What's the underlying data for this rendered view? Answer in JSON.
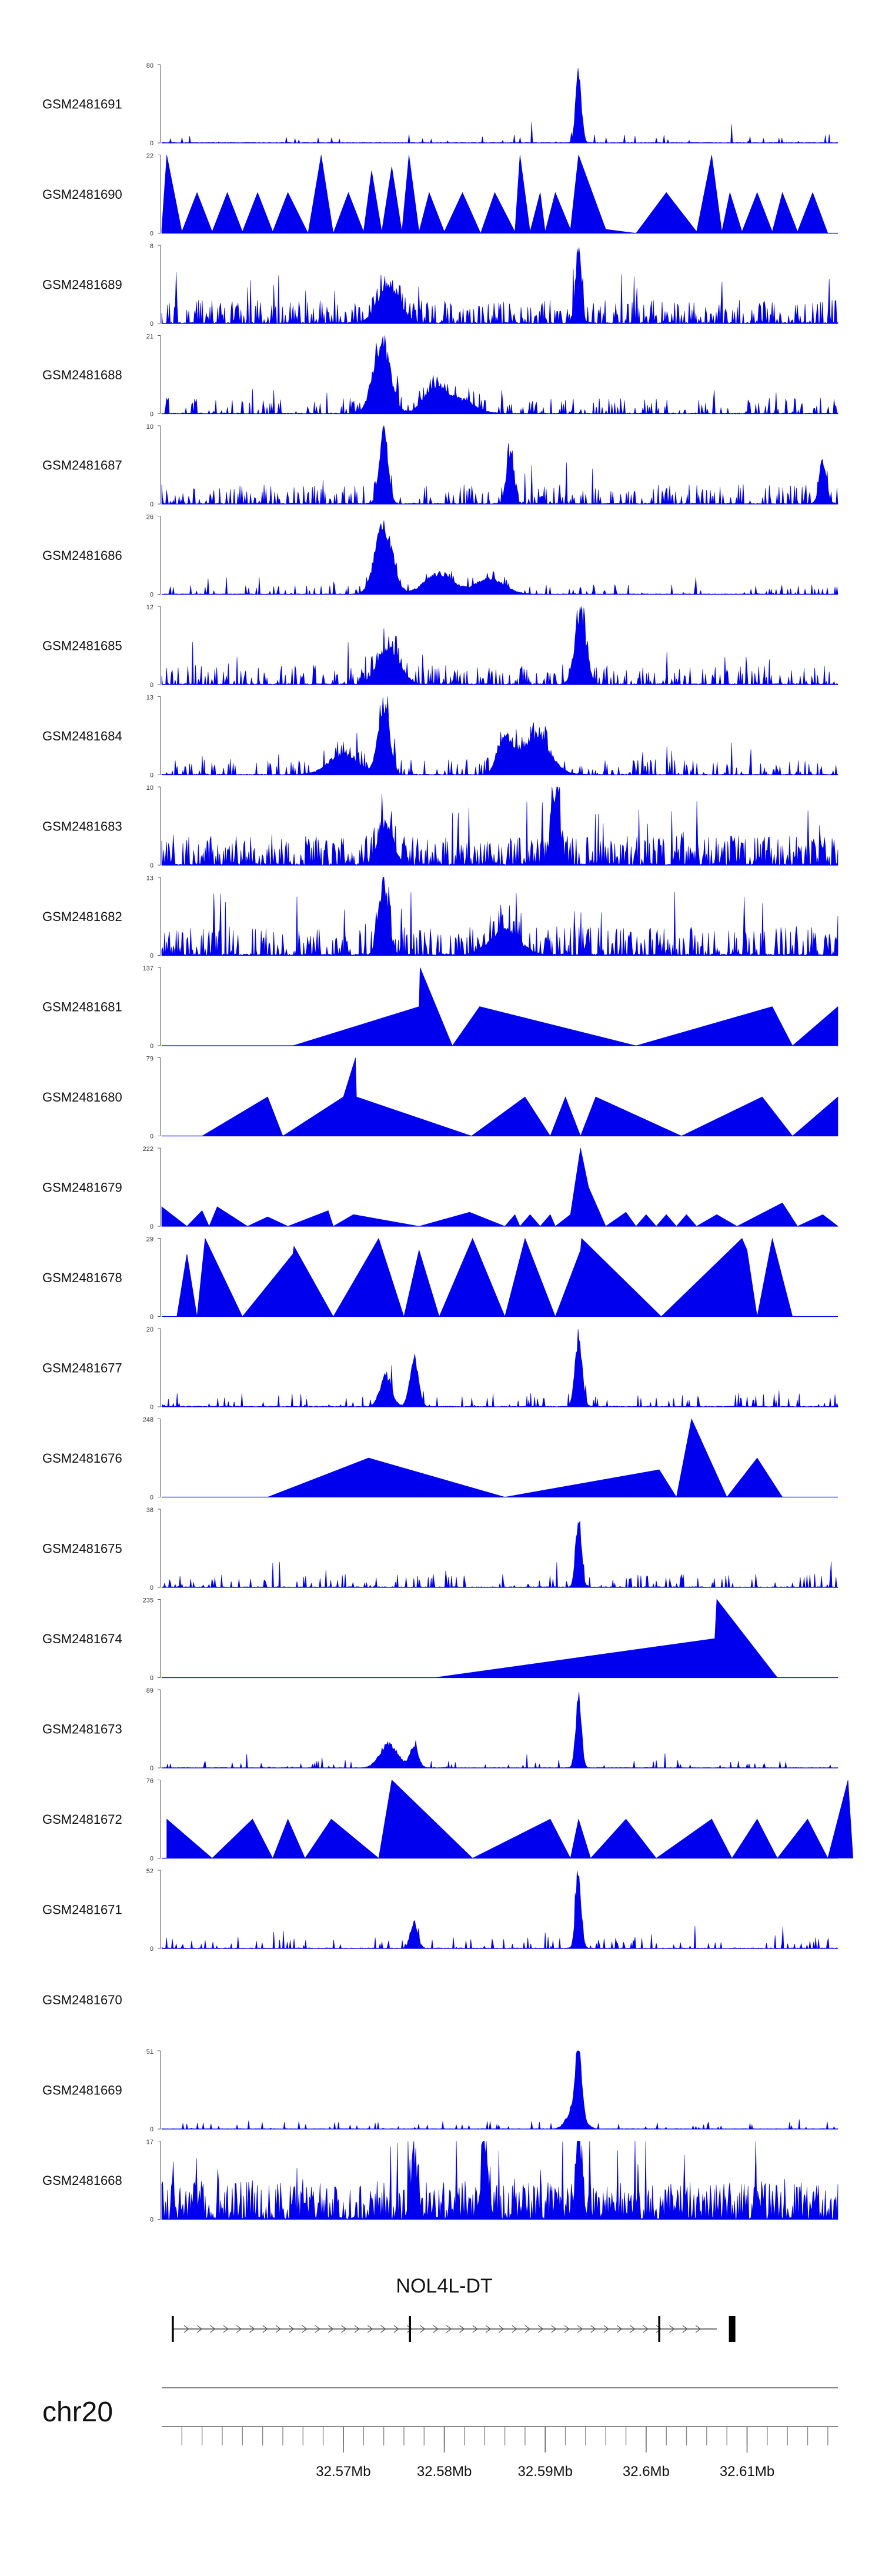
{
  "chart_data": {
    "type": "area",
    "title": "",
    "track_color": "#0000ee",
    "axis_color": "#555555",
    "x_range": [
      32.552,
      32.619
    ],
    "x_unit": "Mb",
    "tracks": [
      {
        "id": "GSM2481691",
        "ymax": 80,
        "style": "noise",
        "seed": 11,
        "density": 0.06,
        "base": 0.05,
        "peaks": [
          [
            32.5933,
            1.0,
            0.0004
          ]
        ]
      },
      {
        "id": "GSM2481690",
        "ymax": 22,
        "style": "tri",
        "points": [
          [
            32.552,
            0.05
          ],
          [
            32.5525,
            1.0
          ],
          [
            32.554,
            0.02
          ],
          [
            32.5555,
            0.52
          ],
          [
            32.557,
            0.02
          ],
          [
            32.5585,
            0.52
          ],
          [
            32.56,
            0.02
          ],
          [
            32.5615,
            0.52
          ],
          [
            32.563,
            0.02
          ],
          [
            32.5645,
            0.52
          ],
          [
            32.5665,
            0.0
          ],
          [
            32.5678,
            1.0
          ],
          [
            32.569,
            0.0
          ],
          [
            32.5705,
            0.52
          ],
          [
            32.572,
            0.02
          ],
          [
            32.5728,
            0.8
          ],
          [
            32.5738,
            0.02
          ],
          [
            32.5748,
            0.85
          ],
          [
            32.5758,
            0.02
          ],
          [
            32.5765,
            1.0
          ],
          [
            32.5775,
            0.02
          ],
          [
            32.5785,
            0.52
          ],
          [
            32.58,
            0.02
          ],
          [
            32.5818,
            0.52
          ],
          [
            32.5836,
            0.0
          ],
          [
            32.585,
            0.52
          ],
          [
            32.587,
            0.02
          ],
          [
            32.5875,
            1.0
          ],
          [
            32.5885,
            0.02
          ],
          [
            32.5895,
            0.52
          ],
          [
            32.59,
            0.02
          ],
          [
            32.591,
            0.52
          ],
          [
            32.5925,
            0.05
          ],
          [
            32.5933,
            1.0
          ],
          [
            32.596,
            0.05
          ],
          [
            32.599,
            0.0
          ],
          [
            32.602,
            0.52
          ],
          [
            32.605,
            0.02
          ],
          [
            32.6065,
            1.0
          ],
          [
            32.6075,
            0.02
          ],
          [
            32.6083,
            0.52
          ],
          [
            32.6095,
            0.02
          ],
          [
            32.611,
            0.52
          ],
          [
            32.6125,
            0.02
          ],
          [
            32.6135,
            0.52
          ],
          [
            32.615,
            0.02
          ],
          [
            32.6165,
            0.52
          ],
          [
            32.618,
            0.0
          ]
        ]
      },
      {
        "id": "GSM2481689",
        "ymax": 8,
        "style": "noise",
        "seed": 23,
        "density": 0.45,
        "base": 0.12,
        "peaks": [
          [
            32.5933,
            1.0,
            0.0004
          ],
          [
            32.5745,
            0.55,
            0.0015
          ]
        ]
      },
      {
        "id": "GSM2481688",
        "ymax": 21,
        "style": "noise",
        "seed": 37,
        "density": 0.25,
        "base": 0.08,
        "peaks": [
          [
            32.5738,
            1.0,
            0.0012
          ],
          [
            32.579,
            0.35,
            0.0015
          ],
          [
            32.5815,
            0.2,
            0.002
          ]
        ]
      },
      {
        "id": "GSM2481687",
        "ymax": 10,
        "style": "noise",
        "seed": 41,
        "density": 0.3,
        "base": 0.1,
        "peaks": [
          [
            32.574,
            1.0,
            0.0006
          ],
          [
            32.5865,
            0.7,
            0.0005
          ],
          [
            32.6175,
            0.6,
            0.0005
          ]
        ]
      },
      {
        "id": "GSM2481686",
        "ymax": 26,
        "style": "noise",
        "seed": 53,
        "density": 0.15,
        "base": 0.05,
        "peaks": [
          [
            32.574,
            1.0,
            0.0012
          ],
          [
            32.5795,
            0.3,
            0.002
          ],
          [
            32.5845,
            0.22,
            0.002
          ]
        ]
      },
      {
        "id": "GSM2481685",
        "ymax": 12,
        "style": "noise",
        "seed": 67,
        "density": 0.3,
        "base": 0.1,
        "peaks": [
          [
            32.5935,
            1.0,
            0.0008
          ],
          [
            32.5745,
            0.55,
            0.0015
          ]
        ]
      },
      {
        "id": "GSM2481684",
        "ymax": 13,
        "style": "noise",
        "seed": 71,
        "density": 0.25,
        "base": 0.08,
        "peaks": [
          [
            32.574,
            1.0,
            0.0008
          ],
          [
            32.586,
            0.5,
            0.001
          ],
          [
            32.589,
            0.55,
            0.002
          ],
          [
            32.57,
            0.3,
            0.002
          ]
        ]
      },
      {
        "id": "GSM2481683",
        "ymax": 10,
        "style": "noise",
        "seed": 83,
        "density": 0.55,
        "base": 0.15,
        "peaks": [
          [
            32.591,
            0.95,
            0.0006
          ],
          [
            32.5742,
            0.6,
            0.001
          ]
        ]
      },
      {
        "id": "GSM2481682",
        "ymax": 13,
        "style": "noise",
        "seed": 97,
        "density": 0.45,
        "base": 0.15,
        "peaks": [
          [
            32.574,
            1.0,
            0.0007
          ],
          [
            32.586,
            0.35,
            0.002
          ]
        ]
      },
      {
        "id": "GSM2481681",
        "ymax": 137,
        "style": "tri",
        "points": [
          [
            32.565,
            0.0
          ],
          [
            32.5775,
            0.5
          ],
          [
            32.5776,
            1.0
          ],
          [
            32.5808,
            0.0
          ],
          [
            32.5835,
            0.5
          ],
          [
            32.599,
            0.0
          ],
          [
            32.6125,
            0.5
          ],
          [
            32.6145,
            0.0
          ],
          [
            32.619,
            0.5
          ]
        ]
      },
      {
        "id": "GSM2481680",
        "ymax": 79,
        "style": "tri",
        "points": [
          [
            32.556,
            0.0
          ],
          [
            32.5625,
            0.5
          ],
          [
            32.564,
            0.0
          ],
          [
            32.57,
            0.5
          ],
          [
            32.5712,
            1.0
          ],
          [
            32.5713,
            0.5
          ],
          [
            32.5827,
            0.0
          ],
          [
            32.588,
            0.5
          ],
          [
            32.5905,
            0.0
          ],
          [
            32.592,
            0.5
          ],
          [
            32.5935,
            0.0
          ],
          [
            32.595,
            0.5
          ],
          [
            32.6035,
            0.0
          ],
          [
            32.6115,
            0.5
          ],
          [
            32.6145,
            0.0
          ],
          [
            32.619,
            0.5
          ]
        ]
      },
      {
        "id": "GSM2481679",
        "ymax": 222,
        "style": "tri",
        "points": [
          [
            32.552,
            0.25
          ],
          [
            32.5545,
            0.0
          ],
          [
            32.556,
            0.2
          ],
          [
            32.5567,
            0.0
          ],
          [
            32.5575,
            0.25
          ],
          [
            32.5605,
            0.0
          ],
          [
            32.5625,
            0.12
          ],
          [
            32.5645,
            0.0
          ],
          [
            32.5685,
            0.2
          ],
          [
            32.569,
            0.0
          ],
          [
            32.571,
            0.15
          ],
          [
            32.5775,
            0.0
          ],
          [
            32.5825,
            0.18
          ],
          [
            32.586,
            0.0
          ],
          [
            32.587,
            0.15
          ],
          [
            32.5875,
            0.0
          ],
          [
            32.5885,
            0.15
          ],
          [
            32.5895,
            0.0
          ],
          [
            32.5905,
            0.15
          ],
          [
            32.591,
            0.0
          ],
          [
            32.5925,
            0.15
          ],
          [
            32.5935,
            1.0
          ],
          [
            32.5943,
            0.5
          ],
          [
            32.596,
            0.0
          ],
          [
            32.598,
            0.18
          ],
          [
            32.599,
            0.0
          ],
          [
            32.6,
            0.15
          ],
          [
            32.601,
            0.0
          ],
          [
            32.602,
            0.15
          ],
          [
            32.603,
            0.0
          ],
          [
            32.604,
            0.15
          ],
          [
            32.605,
            0.0
          ],
          [
            32.607,
            0.15
          ],
          [
            32.609,
            0.0
          ],
          [
            32.6135,
            0.3
          ],
          [
            32.615,
            0.0
          ],
          [
            32.6175,
            0.15
          ],
          [
            32.619,
            0.0
          ]
        ]
      },
      {
        "id": "GSM2481678",
        "ymax": 29,
        "style": "tri",
        "points": [
          [
            32.5535,
            0.0
          ],
          [
            32.5545,
            0.8
          ],
          [
            32.5555,
            0.0
          ],
          [
            32.5563,
            1.0
          ],
          [
            32.56,
            0.0
          ],
          [
            32.565,
            0.8
          ],
          [
            32.5651,
            0.9
          ],
          [
            32.569,
            0.0
          ],
          [
            32.5735,
            1.0
          ],
          [
            32.576,
            0.0
          ],
          [
            32.5775,
            0.85
          ],
          [
            32.5795,
            0.0
          ],
          [
            32.5828,
            1.0
          ],
          [
            32.586,
            0.0
          ],
          [
            32.588,
            1.0
          ],
          [
            32.591,
            0.0
          ],
          [
            32.5935,
            0.85
          ],
          [
            32.5936,
            1.0
          ],
          [
            32.6015,
            0.0
          ],
          [
            32.6095,
            1.0
          ],
          [
            32.61,
            0.85
          ],
          [
            32.611,
            0.0
          ],
          [
            32.6125,
            1.0
          ],
          [
            32.6145,
            0.0
          ]
        ]
      },
      {
        "id": "GSM2481677",
        "ymax": 20,
        "style": "noise",
        "seed": 113,
        "density": 0.12,
        "base": 0.07,
        "peaks": [
          [
            32.5933,
            1.0,
            0.0005
          ],
          [
            32.577,
            0.7,
            0.0006
          ],
          [
            32.5742,
            0.45,
            0.0008
          ]
        ]
      },
      {
        "id": "GSM2481676",
        "ymax": 248,
        "style": "tri",
        "points": [
          [
            32.5625,
            0.0
          ],
          [
            32.5725,
            0.5
          ],
          [
            32.586,
            0.0
          ],
          [
            32.6013,
            0.35
          ],
          [
            32.603,
            0.0
          ],
          [
            32.6045,
            1.0
          ],
          [
            32.608,
            0.0
          ],
          [
            32.611,
            0.5
          ],
          [
            32.6135,
            0.0
          ]
        ]
      },
      {
        "id": "GSM2481675",
        "ymax": 38,
        "style": "noise",
        "seed": 131,
        "density": 0.15,
        "base": 0.07,
        "peaks": [
          [
            32.5933,
            1.0,
            0.0004
          ]
        ]
      },
      {
        "id": "GSM2481674",
        "ymax": 235,
        "style": "tri",
        "points": [
          [
            32.579,
            0.0
          ],
          [
            32.6068,
            0.5
          ],
          [
            32.607,
            1.0
          ],
          [
            32.613,
            0.0
          ]
        ]
      },
      {
        "id": "GSM2481673",
        "ymax": 89,
        "style": "noise",
        "seed": 151,
        "density": 0.08,
        "base": 0.04,
        "peaks": [
          [
            32.5933,
            1.0,
            0.0004
          ],
          [
            32.5745,
            0.35,
            0.0012
          ],
          [
            32.577,
            0.3,
            0.0006
          ]
        ]
      },
      {
        "id": "GSM2481672",
        "ymax": 76,
        "style": "tri",
        "points": [
          [
            32.5525,
            0.5
          ],
          [
            32.557,
            0.0
          ],
          [
            32.561,
            0.5
          ],
          [
            32.563,
            0.0
          ],
          [
            32.5645,
            0.5
          ],
          [
            32.5662,
            0.0
          ],
          [
            32.5688,
            0.5
          ],
          [
            32.5735,
            0.0
          ],
          [
            32.5748,
            1.0
          ],
          [
            32.5828,
            0.0
          ],
          [
            32.5905,
            0.5
          ],
          [
            32.5925,
            0.0
          ],
          [
            32.5933,
            0.5
          ],
          [
            32.5945,
            0.0
          ],
          [
            32.598,
            0.5
          ],
          [
            32.601,
            0.0
          ],
          [
            32.6065,
            0.5
          ],
          [
            32.6085,
            0.0
          ],
          [
            32.611,
            0.5
          ],
          [
            32.613,
            0.0
          ],
          [
            32.616,
            0.5
          ],
          [
            32.618,
            0.0
          ],
          [
            32.62,
            1.0
          ],
          [
            32.6205,
            0.0
          ]
        ]
      },
      {
        "id": "GSM2481671",
        "ymax": 52,
        "style": "noise",
        "seed": 173,
        "density": 0.12,
        "base": 0.06,
        "peaks": [
          [
            32.5933,
            1.0,
            0.0004
          ],
          [
            32.577,
            0.4,
            0.0005
          ]
        ]
      },
      {
        "id": "GSM2481670",
        "ymax": null,
        "style": "empty"
      },
      {
        "id": "GSM2481669",
        "ymax": 51,
        "style": "noise",
        "seed": 191,
        "density": 0.08,
        "base": 0.04,
        "peaks": [
          [
            32.5933,
            1.0,
            0.0004
          ],
          [
            32.593,
            0.35,
            0.001
          ]
        ]
      },
      {
        "id": "GSM2481668",
        "ymax": 17,
        "style": "noise",
        "seed": 199,
        "density": 0.7,
        "base": 0.2,
        "peaks": [
          [
            32.584,
            1.0,
            0.0005
          ],
          [
            32.5933,
            0.85,
            0.0005
          ],
          [
            32.577,
            0.7,
            0.0005
          ]
        ]
      }
    ],
    "gene": {
      "name": "NOL4L-DT",
      "start": 32.553,
      "end": 32.607,
      "strand": "+",
      "exons": [
        [
          32.553,
          32.5532
        ],
        [
          32.5765,
          32.5767
        ],
        [
          32.6012,
          32.6014
        ],
        [
          32.6082,
          32.6088
        ]
      ]
    },
    "axis": {
      "chromosome": "chr20",
      "ticks_minor_step": 0.002,
      "tick_labels": [
        "32.57Mb",
        "32.58Mb",
        "32.59Mb",
        "32.6Mb",
        "32.61Mb"
      ],
      "tick_values": [
        32.57,
        32.58,
        32.59,
        32.6,
        32.61
      ]
    }
  }
}
